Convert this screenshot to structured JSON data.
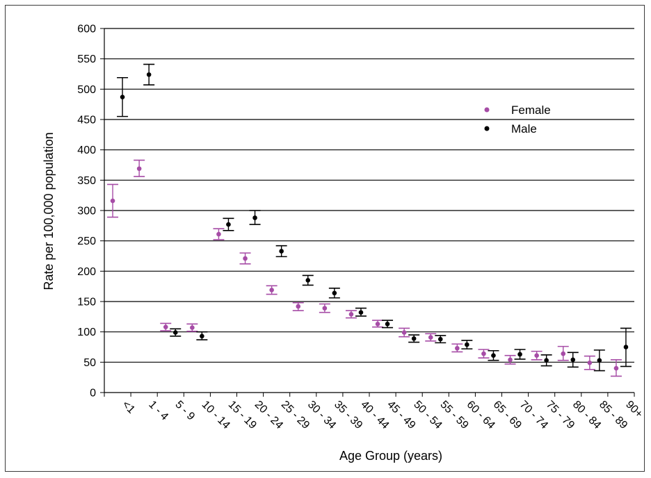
{
  "chart_data": {
    "type": "scatter",
    "title": "",
    "xlabel": "Age Group (years)",
    "ylabel": "Rate per 100,000 population",
    "ylim": [
      0,
      600
    ],
    "yticks": [
      0,
      50,
      100,
      150,
      200,
      250,
      300,
      350,
      400,
      450,
      500,
      550,
      600
    ],
    "grid": "horizontal",
    "legend_position": "top-right",
    "categories": [
      "<1",
      "1 - 4",
      "5 - 9",
      "10 - 14",
      "15 - 19",
      "20 - 24",
      "25 - 29",
      "30 - 34",
      "35 - 39",
      "40 - 44",
      "45 - 49",
      "50 - 54",
      "55 - 59",
      "60 - 64",
      "65 - 69",
      "70 - 74",
      "75 - 79",
      "80 - 84",
      "85 - 89",
      "90+"
    ],
    "series": [
      {
        "name": "Female",
        "color": "#a64ca6",
        "values": [
          316,
          369,
          108,
          107,
          261,
          221,
          169,
          142,
          139,
          129,
          113,
          99,
          91,
          73,
          64,
          54,
          61,
          64,
          49,
          40
        ],
        "lower": [
          289,
          356,
          102,
          101,
          252,
          212,
          162,
          135,
          132,
          123,
          108,
          92,
          85,
          67,
          57,
          47,
          54,
          53,
          38,
          27
        ],
        "upper": [
          343,
          383,
          114,
          113,
          270,
          230,
          176,
          148,
          146,
          135,
          119,
          106,
          97,
          80,
          71,
          61,
          68,
          76,
          60,
          54
        ]
      },
      {
        "name": "Male",
        "color": "#000000",
        "values": [
          487,
          524,
          99,
          93,
          277,
          288,
          233,
          185,
          164,
          132,
          113,
          89,
          88,
          79,
          61,
          63,
          53,
          54,
          53,
          75
        ],
        "lower": [
          455,
          507,
          93,
          87,
          267,
          277,
          224,
          177,
          156,
          126,
          107,
          83,
          82,
          72,
          53,
          55,
          44,
          42,
          36,
          43
        ],
        "upper": [
          519,
          541,
          105,
          100,
          287,
          300,
          242,
          193,
          172,
          139,
          119,
          95,
          94,
          86,
          69,
          71,
          62,
          66,
          70,
          106
        ]
      }
    ]
  }
}
